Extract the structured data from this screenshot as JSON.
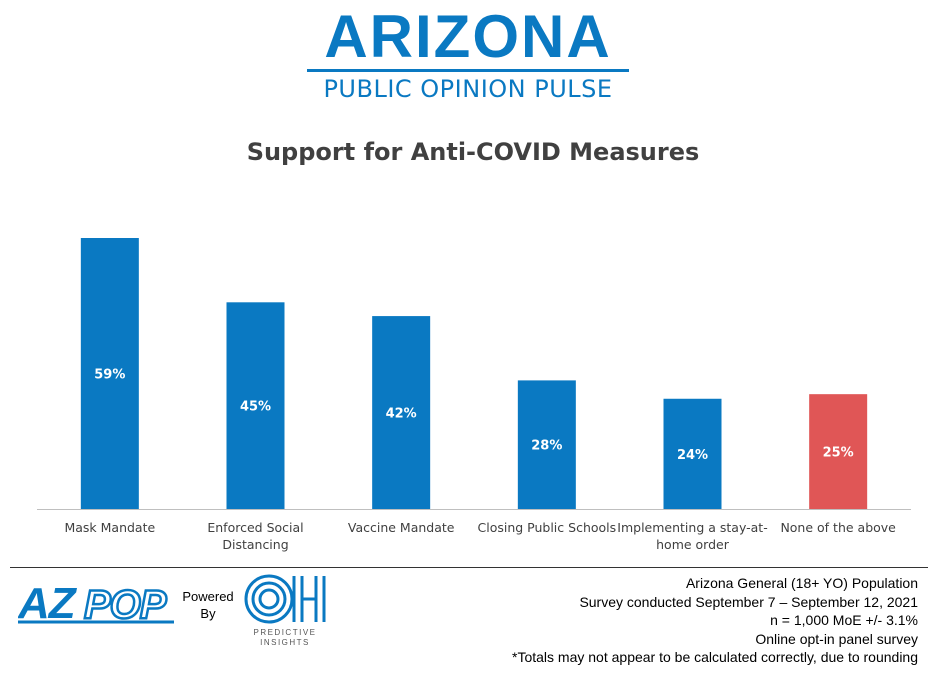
{
  "header": {
    "brand_name": "ARIZONA",
    "brand_sub": "PUBLIC OPINION PULSE"
  },
  "chart_data": {
    "type": "bar",
    "title": "Support for Anti-COVID Measures",
    "categories": [
      "Mask Mandate",
      "Enforced Social Distancing",
      "Vaccine Mandate",
      "Closing Public Schools",
      "Implementing a stay-at-home order",
      "None of the above"
    ],
    "category_lines": [
      [
        "Mask Mandate"
      ],
      [
        "Enforced Social",
        "Distancing"
      ],
      [
        "Vaccine Mandate"
      ],
      [
        "Closing Public Schools"
      ],
      [
        "Implementing a stay-at-",
        "home order"
      ],
      [
        "None of the above"
      ]
    ],
    "values": [
      59,
      45,
      42,
      28,
      24,
      25
    ],
    "data_labels": [
      "59%",
      "45%",
      "42%",
      "28%",
      "24%",
      "25%"
    ],
    "bar_colors": [
      "#0a79c2",
      "#0a79c2",
      "#0a79c2",
      "#0a79c2",
      "#0a79c2",
      "#e05656"
    ],
    "ylim": [
      0,
      59
    ],
    "grid": false,
    "xlabel": "",
    "ylabel": ""
  },
  "footer": {
    "azpop_logo": "AZPOP",
    "powered_by": [
      "Powered",
      "By"
    ],
    "oh_logo": "OH",
    "oh_sub": "PREDICTIVE INSIGHTS",
    "notes": [
      "Arizona General (18+ YO) Population",
      "Survey conducted September 7 – September 12, 2021",
      "n = 1,000 MoE +/- 3.1%",
      "Online opt-in panel survey",
      "*Totals may not appear to be calculated correctly, due to rounding"
    ]
  }
}
